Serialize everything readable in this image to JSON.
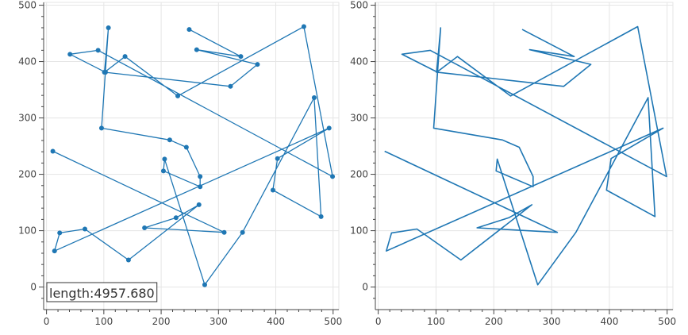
{
  "chart_data": [
    {
      "type": "line",
      "annotation": "length:4957.680",
      "markers": true,
      "xlim": [
        -5,
        510
      ],
      "ylim": [
        -40,
        505
      ],
      "xticks": [
        0,
        100,
        200,
        300,
        400,
        500
      ],
      "yticks": [
        0,
        100,
        200,
        300,
        400,
        500
      ],
      "grid": true,
      "series": [
        {
          "x": [
            249,
            339,
            262,
            368,
            321,
            103,
            41,
            90,
            499,
            449,
            229,
            137,
            101,
            108,
            96,
            215,
            244,
            268,
            268,
            204,
            206,
            276,
            342,
            467,
            479,
            395,
            403,
            493,
            14,
            23,
            67,
            143,
            266,
            226,
            171,
            310,
            11
          ],
          "y": [
            457,
            409,
            421,
            395,
            356,
            381,
            413,
            420,
            196,
            462,
            339,
            409,
            381,
            460,
            282,
            261,
            248,
            196,
            178,
            206,
            227,
            4,
            97,
            336,
            125,
            172,
            228,
            282,
            64,
            96,
            103,
            48,
            146,
            123,
            105,
            97,
            241
          ],
          "color": "#1f77b4"
        }
      ]
    },
    {
      "type": "line",
      "markers": false,
      "xlim": [
        -5,
        510
      ],
      "ylim": [
        -40,
        505
      ],
      "xticks": [
        0,
        100,
        200,
        300,
        400,
        500
      ],
      "yticks": [
        0,
        100,
        200,
        300,
        400,
        500
      ],
      "grid": true,
      "series": [
        {
          "x": [
            249,
            339,
            262,
            368,
            321,
            103,
            41,
            90,
            499,
            449,
            229,
            137,
            101,
            108,
            96,
            215,
            244,
            268,
            268,
            204,
            206,
            276,
            342,
            467,
            479,
            395,
            403,
            493,
            14,
            23,
            67,
            143,
            266,
            226,
            171,
            310,
            11
          ],
          "y": [
            457,
            409,
            421,
            395,
            356,
            381,
            413,
            420,
            196,
            462,
            339,
            409,
            381,
            460,
            282,
            261,
            248,
            196,
            178,
            206,
            227,
            4,
            97,
            336,
            125,
            172,
            228,
            282,
            64,
            96,
            103,
            48,
            146,
            123,
            105,
            97,
            241
          ],
          "color": "#1f77b4"
        }
      ]
    }
  ]
}
